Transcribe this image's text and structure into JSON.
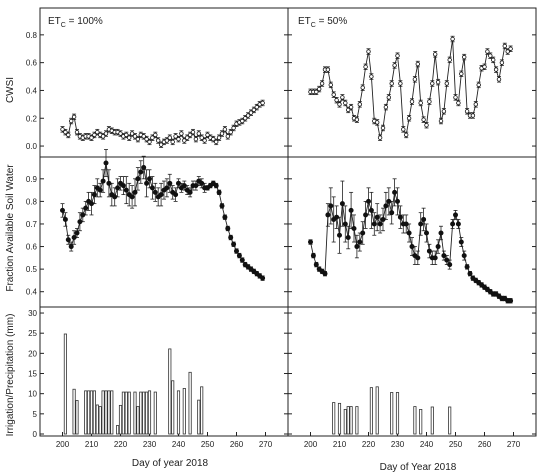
{
  "chart_data": [
    {
      "type": "line",
      "panel": "CWSI, ETc = 100%",
      "label_main": "ET",
      "label_sub": "C",
      "label_tail": " = 100%",
      "ylabel": "CWSI",
      "xlim": [
        195,
        275
      ],
      "ylim": [
        -0.05,
        0.95
      ],
      "yticks": [
        0.0,
        0.2,
        0.4,
        0.6,
        0.8
      ],
      "x": [
        200,
        201,
        202,
        203,
        204,
        205,
        206,
        207,
        208,
        209,
        210,
        211,
        212,
        213,
        214,
        215,
        216,
        217,
        218,
        219,
        220,
        221,
        222,
        223,
        224,
        225,
        226,
        227,
        228,
        229,
        230,
        231,
        232,
        233,
        234,
        235,
        236,
        237,
        238,
        239,
        240,
        241,
        242,
        243,
        244,
        245,
        246,
        247,
        248,
        249,
        250,
        251,
        252,
        253,
        254,
        255,
        256,
        257,
        258,
        259,
        260,
        261,
        262,
        263,
        264,
        265,
        266,
        267,
        268,
        269
      ],
      "y": [
        0.12,
        0.1,
        0.08,
        0.18,
        0.21,
        0.1,
        0.07,
        0.06,
        0.07,
        0.07,
        0.06,
        0.08,
        0.1,
        0.08,
        0.07,
        0.09,
        0.12,
        0.11,
        0.1,
        0.1,
        0.09,
        0.07,
        0.08,
        0.06,
        0.09,
        0.07,
        0.05,
        0.08,
        0.07,
        0.05,
        0.03,
        0.06,
        0.08,
        0.04,
        0.01,
        0.03,
        0.04,
        0.06,
        0.03,
        0.07,
        0.05,
        0.09,
        0.04,
        0.06,
        0.08,
        0.1,
        0.05,
        0.09,
        0.06,
        0.04,
        0.08,
        0.06,
        0.05,
        0.03,
        0.06,
        0.09,
        0.12,
        0.07,
        0.1,
        0.13,
        0.16,
        0.17,
        0.18,
        0.2,
        0.22,
        0.24,
        0.26,
        0.28,
        0.3,
        0.31
      ],
      "err": 0.02,
      "marker": "open-circle"
    },
    {
      "type": "line",
      "panel": "CWSI, ETc = 50%",
      "label_main": "ET",
      "label_sub": "C",
      "label_tail": " = 50%",
      "ylabel": "",
      "xlim": [
        195,
        275
      ],
      "ylim": [
        -0.05,
        0.95
      ],
      "yticks": [
        0.0,
        0.2,
        0.4,
        0.6,
        0.8
      ],
      "x": [
        200,
        201,
        202,
        203,
        204,
        205,
        206,
        207,
        208,
        209,
        210,
        211,
        212,
        213,
        214,
        215,
        216,
        217,
        218,
        219,
        220,
        221,
        222,
        223,
        224,
        225,
        226,
        227,
        228,
        229,
        230,
        231,
        232,
        233,
        234,
        235,
        236,
        237,
        238,
        239,
        240,
        241,
        242,
        243,
        244,
        245,
        246,
        247,
        248,
        249,
        250,
        251,
        252,
        253,
        254,
        255,
        256,
        257,
        258,
        259,
        260,
        261,
        262,
        263,
        264,
        265,
        266,
        267,
        268,
        269
      ],
      "y": [
        0.39,
        0.39,
        0.39,
        0.41,
        0.45,
        0.55,
        0.55,
        0.44,
        0.37,
        0.33,
        0.3,
        0.35,
        0.31,
        0.26,
        0.28,
        0.2,
        0.19,
        0.3,
        0.42,
        0.57,
        0.68,
        0.5,
        0.18,
        0.17,
        0.06,
        0.13,
        0.28,
        0.35,
        0.45,
        0.58,
        0.65,
        0.45,
        0.12,
        0.08,
        0.2,
        0.32,
        0.48,
        0.59,
        0.31,
        0.19,
        0.15,
        0.32,
        0.45,
        0.66,
        0.46,
        0.18,
        0.25,
        0.45,
        0.62,
        0.77,
        0.35,
        0.31,
        0.52,
        0.64,
        0.25,
        0.22,
        0.22,
        0.3,
        0.44,
        0.56,
        0.57,
        0.68,
        0.65,
        0.62,
        0.55,
        0.48,
        0.6,
        0.72,
        0.68,
        0.7
      ],
      "y_tail": [
        0.69,
        0.7,
        0.65,
        0.68,
        0.7,
        0.7,
        0.71,
        0.78,
        0.75,
        0.7,
        0.71,
        0.72,
        0.75,
        0.81,
        0.72,
        0.71
      ],
      "x_tail": [
        254,
        255,
        256,
        257,
        258,
        259,
        260,
        261,
        262,
        263,
        264,
        265,
        266,
        267,
        268,
        269
      ],
      "err": 0.02,
      "marker": "open-circle"
    },
    {
      "type": "line",
      "panel": "Fraction Available Soil Water, ETc = 100%",
      "ylabel": "Fraction Available Soil Water",
      "xlim": [
        195,
        275
      ],
      "ylim": [
        0.35,
        0.97
      ],
      "yticks": [
        0.4,
        0.5,
        0.6,
        0.7,
        0.8,
        0.9
      ],
      "x": [
        200,
        201,
        202,
        203,
        204,
        205,
        206,
        207,
        208,
        209,
        210,
        211,
        212,
        213,
        214,
        215,
        216,
        217,
        218,
        219,
        220,
        221,
        222,
        223,
        224,
        225,
        226,
        227,
        228,
        229,
        230,
        231,
        232,
        233,
        234,
        235,
        236,
        237,
        238,
        239,
        240,
        241,
        242,
        243,
        244,
        245,
        246,
        247,
        248,
        249,
        250,
        251,
        252,
        253,
        254,
        255,
        256,
        257,
        258,
        259,
        260,
        261,
        262,
        263,
        264,
        265,
        266,
        267,
        268,
        269
      ],
      "y": [
        0.76,
        0.72,
        0.63,
        0.6,
        0.64,
        0.66,
        0.71,
        0.74,
        0.77,
        0.8,
        0.79,
        0.83,
        0.86,
        0.85,
        0.89,
        0.97,
        0.88,
        0.83,
        0.82,
        0.86,
        0.88,
        0.87,
        0.85,
        0.83,
        0.82,
        0.84,
        0.9,
        0.93,
        0.95,
        0.88,
        0.9,
        0.86,
        0.84,
        0.82,
        0.83,
        0.85,
        0.86,
        0.88,
        0.84,
        0.83,
        0.88,
        0.86,
        0.87,
        0.85,
        0.84,
        0.87,
        0.87,
        0.89,
        0.88,
        0.86,
        0.86,
        0.87,
        0.88,
        0.87,
        0.84,
        0.78,
        0.73,
        0.68,
        0.64,
        0.61,
        0.58,
        0.56,
        0.54,
        0.52,
        0.51,
        0.5,
        0.49,
        0.48,
        0.47,
        0.46
      ],
      "err": [
        0.03,
        0.03,
        0.02,
        0.02,
        0.03,
        0.02,
        0.04,
        0.03,
        0.03,
        0.04,
        0.05,
        0.04,
        0.04,
        0.03,
        0.05,
        0.06,
        0.06,
        0.05,
        0.04,
        0.04,
        0.03,
        0.04,
        0.06,
        0.05,
        0.05,
        0.06,
        0.05,
        0.05,
        0.05,
        0.06,
        0.04,
        0.05,
        0.04,
        0.04,
        0.05,
        0.04,
        0.04,
        0.04,
        0.03,
        0.03,
        0.02,
        0.02,
        0.02,
        0.02,
        0.02,
        0.02,
        0.02,
        0.02,
        0.02,
        0.02,
        0.01,
        0.01,
        0.01,
        0.01,
        0.01,
        0.01,
        0.01,
        0.01,
        0.01,
        0.01,
        0.01,
        0.01,
        0.01,
        0.01,
        0.01,
        0.01,
        0.01,
        0.01,
        0.01,
        0.01
      ],
      "marker": "filled-circle"
    },
    {
      "type": "line",
      "panel": "Fraction Available Soil Water, ETc = 50%",
      "ylabel": "",
      "xlim": [
        195,
        275
      ],
      "ylim": [
        0.35,
        0.97
      ],
      "yticks": [
        0.4,
        0.5,
        0.6,
        0.7,
        0.8,
        0.9
      ],
      "x": [
        200,
        201,
        202,
        203,
        204,
        205,
        206,
        207,
        208,
        209,
        210,
        211,
        212,
        213,
        214,
        215,
        216,
        217,
        218,
        219,
        220,
        221,
        222,
        223,
        224,
        225,
        226,
        227,
        228,
        229,
        230,
        231,
        232,
        233,
        234,
        235,
        236,
        237,
        238,
        239,
        240,
        241,
        242,
        243,
        244,
        245,
        246,
        247,
        248,
        249,
        250,
        251,
        252,
        253,
        254,
        255,
        256,
        257,
        258,
        259,
        260,
        261,
        262,
        263,
        264,
        265,
        266,
        267,
        268,
        269
      ],
      "y": [
        0.62,
        0.56,
        0.52,
        0.5,
        0.49,
        0.48,
        0.74,
        0.78,
        0.72,
        0.73,
        0.65,
        0.79,
        0.7,
        0.64,
        0.76,
        0.68,
        0.6,
        0.62,
        0.66,
        0.74,
        0.8,
        0.76,
        0.7,
        0.73,
        0.7,
        0.72,
        0.78,
        0.8,
        0.75,
        0.84,
        0.8,
        0.73,
        0.7,
        0.7,
        0.66,
        0.6,
        0.56,
        0.55,
        0.7,
        0.72,
        0.66,
        0.58,
        0.55,
        0.55,
        0.6,
        0.66,
        0.56,
        0.54,
        0.52,
        0.7,
        0.74,
        0.7,
        0.62,
        0.56,
        0.51,
        0.48,
        0.46,
        0.45,
        0.44,
        0.43,
        0.42,
        0.41,
        0.4,
        0.39,
        0.39,
        0.38,
        0.37,
        0.37,
        0.36,
        0.36
      ],
      "err": [
        0.01,
        0.01,
        0.01,
        0.01,
        0.01,
        0.01,
        0.05,
        0.08,
        0.1,
        0.05,
        0.08,
        0.1,
        0.08,
        0.05,
        0.08,
        0.06,
        0.05,
        0.04,
        0.05,
        0.06,
        0.06,
        0.08,
        0.05,
        0.06,
        0.04,
        0.05,
        0.06,
        0.06,
        0.05,
        0.06,
        0.06,
        0.05,
        0.04,
        0.04,
        0.04,
        0.04,
        0.04,
        0.03,
        0.05,
        0.05,
        0.04,
        0.03,
        0.03,
        0.03,
        0.03,
        0.03,
        0.02,
        0.02,
        0.02,
        0.02,
        0.02,
        0.02,
        0.02,
        0.02,
        0.01,
        0.01,
        0.01,
        0.01,
        0.01,
        0.01,
        0.01,
        0.01,
        0.01,
        0.01,
        0.01,
        0.01,
        0.01,
        0.01,
        0.01,
        0.01
      ],
      "marker": "filled-circle"
    },
    {
      "type": "bar",
      "panel": "Irrigation/Precipitation, ETc = 100%",
      "ylabel": "Irrigation/Precipitation (mm)",
      "xlabel": "Day of year 2018",
      "xlim": [
        195,
        275
      ],
      "ylim": [
        0,
        31
      ],
      "yticks": [
        0,
        5,
        10,
        15,
        20,
        25,
        30
      ],
      "xticks": [
        200,
        210,
        220,
        230,
        240,
        250,
        260,
        270
      ],
      "x": [
        201,
        204,
        205,
        208,
        209,
        210,
        211,
        212,
        213,
        214,
        215,
        216,
        217,
        219,
        220,
        221,
        222,
        223,
        225,
        226,
        227,
        228,
        229,
        230,
        232,
        237,
        238,
        240,
        242,
        244,
        247,
        248
      ],
      "values": [
        24.8,
        11.1,
        8.3,
        10.7,
        10.7,
        10.7,
        10.7,
        7.2,
        6.8,
        10.7,
        10.7,
        10.7,
        10.7,
        2.1,
        7.1,
        10.4,
        10.4,
        10.4,
        10.4,
        6.8,
        10.4,
        10.4,
        10.4,
        10.7,
        10.4,
        21.1,
        13.2,
        10.7,
        11.3,
        15.3,
        8.4,
        11.7
      ]
    },
    {
      "type": "bar",
      "panel": "Irrigation/Precipitation, ETc = 50%",
      "ylabel": "",
      "xlabel": "Day of Year 2018",
      "xlim": [
        195,
        275
      ],
      "ylim": [
        0,
        31
      ],
      "yticks": [
        0,
        5,
        10,
        15,
        20,
        25,
        30
      ],
      "xticks": [
        200,
        210,
        220,
        230,
        240,
        250,
        260,
        270
      ],
      "x": [
        208,
        210,
        212,
        213,
        214,
        216,
        221,
        223,
        228,
        230,
        236,
        238,
        242,
        248
      ],
      "values": [
        7.8,
        7.6,
        6.1,
        6.8,
        6.8,
        6.8,
        11.5,
        11.7,
        10.3,
        10.3,
        6.8,
        6.1,
        6.7,
        6.7
      ]
    }
  ]
}
